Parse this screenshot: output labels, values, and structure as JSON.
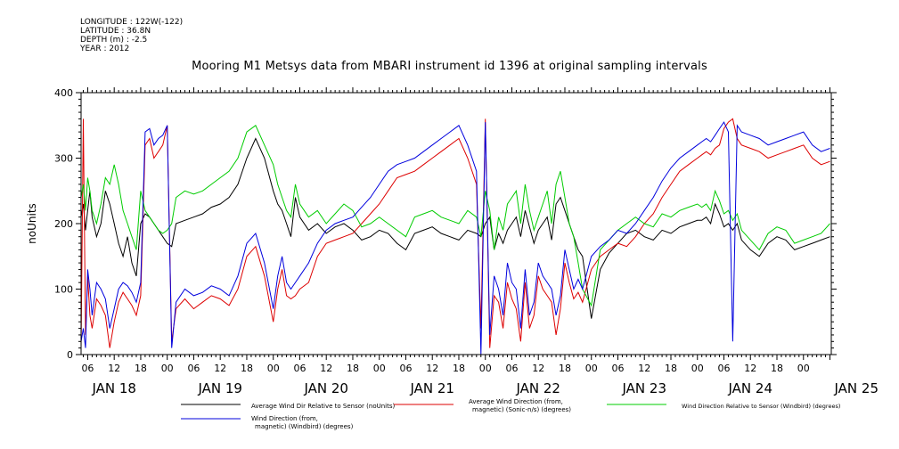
{
  "header": {
    "meta_lines": [
      "LONGITUDE : 122W(-122)",
      "LATITUDE : 36.8N",
      "DEPTH (m) : -2.5",
      "YEAR : 2012"
    ]
  },
  "chart_data": {
    "type": "line",
    "title": "Mooring M1 Metsys data from MBARI instrument id 1396 at original sampling intervals",
    "ylabel": "noUnits",
    "xlabel": "",
    "ylim": [
      0,
      400
    ],
    "xlim": [
      4.5,
      174.3
    ],
    "x_units": "hours since JAN 18 00:00",
    "yticks": [
      0,
      100,
      200,
      300,
      400
    ],
    "hour_ticks": {
      "hours": [
        6,
        12,
        18,
        24,
        30,
        36,
        42,
        48,
        54,
        60,
        66,
        72,
        78,
        84,
        90,
        96,
        102,
        108,
        114,
        120,
        126,
        132,
        138,
        144,
        150,
        156,
        162,
        168
      ],
      "labels": [
        "06",
        "12",
        "18",
        "00",
        "06",
        "12",
        "18",
        "00",
        "06",
        "12",
        "18",
        "00",
        "06",
        "12",
        "18",
        "00",
        "06",
        "12",
        "18",
        "00",
        "06",
        "12",
        "18",
        "00",
        "06",
        "12",
        "18",
        "00"
      ]
    },
    "day_labels": [
      {
        "hour": 0,
        "text": "JAN 18"
      },
      {
        "hour": 24,
        "text": "JAN 19"
      },
      {
        "hour": 48,
        "text": "JAN 20"
      },
      {
        "hour": 72,
        "text": "JAN 21"
      },
      {
        "hour": 96,
        "text": "JAN 22"
      },
      {
        "hour": 120,
        "text": "JAN 23"
      },
      {
        "hour": 144,
        "text": "JAN 24"
      },
      {
        "hour": 168,
        "text": "JAN 25"
      }
    ],
    "grid": false,
    "legend_position": "bottom",
    "series": [
      {
        "name": "Average Wind Dir Relative to Sensor (noUnits)",
        "color": "#000000",
        "x": [
          4.5,
          5,
          5.5,
          6,
          6.5,
          7,
          8,
          9,
          10,
          11,
          12,
          13,
          14,
          15,
          16,
          17,
          18,
          19,
          20,
          21,
          22,
          23,
          24,
          25,
          26,
          28,
          30,
          32,
          34,
          36,
          38,
          40,
          42,
          44,
          46,
          48,
          49,
          50,
          51,
          52,
          53,
          54,
          56,
          58,
          60,
          62,
          64,
          66,
          68,
          70,
          72,
          74,
          76,
          78,
          80,
          82,
          84,
          86,
          88,
          90,
          92,
          94,
          95,
          96,
          97,
          98,
          99,
          100,
          101,
          102,
          103,
          104,
          105,
          106,
          107,
          108,
          109,
          110,
          111,
          112,
          113,
          114,
          115,
          116,
          117,
          118,
          120,
          122,
          124,
          126,
          128,
          130,
          132,
          134,
          136,
          138,
          140,
          142,
          144,
          145,
          146,
          147,
          148,
          149,
          150,
          151,
          152,
          153,
          154,
          156,
          158,
          160,
          162,
          164,
          166,
          168,
          170,
          172,
          174
        ],
        "values": [
          210,
          230,
          190,
          220,
          250,
          210,
          180,
          200,
          250,
          230,
          200,
          170,
          150,
          180,
          140,
          120,
          200,
          215,
          210,
          200,
          190,
          180,
          170,
          165,
          200,
          205,
          210,
          215,
          225,
          230,
          240,
          260,
          300,
          330,
          300,
          250,
          230,
          220,
          200,
          180,
          240,
          210,
          190,
          200,
          185,
          195,
          200,
          190,
          175,
          180,
          190,
          185,
          170,
          160,
          185,
          190,
          195,
          185,
          180,
          175,
          190,
          185,
          180,
          200,
          210,
          160,
          185,
          170,
          190,
          200,
          210,
          180,
          220,
          195,
          170,
          190,
          200,
          210,
          175,
          230,
          240,
          220,
          200,
          180,
          160,
          150,
          55,
          130,
          155,
          170,
          185,
          190,
          180,
          175,
          190,
          185,
          195,
          200,
          205,
          205,
          210,
          200,
          230,
          215,
          195,
          200,
          190,
          200,
          175,
          160,
          150,
          170,
          180,
          175,
          160,
          165,
          170,
          175,
          180
        ]
      },
      {
        "name": "Average Wind Direction (from, magnetic) (Sonic-n/s) (degrees)",
        "color": "#dd0000",
        "x": [
          4.5,
          5,
          5.5,
          6,
          6.5,
          7,
          8,
          9,
          10,
          11,
          12,
          13,
          14,
          15,
          16,
          17,
          18,
          19,
          20,
          21,
          22,
          23,
          24,
          25,
          26,
          28,
          30,
          32,
          34,
          36,
          38,
          40,
          42,
          44,
          46,
          48,
          49,
          50,
          51,
          52,
          53,
          54,
          56,
          58,
          60,
          62,
          64,
          66,
          68,
          70,
          72,
          74,
          76,
          78,
          80,
          82,
          84,
          86,
          88,
          90,
          92,
          94,
          95,
          96,
          97,
          98,
          99,
          100,
          101,
          102,
          103,
          104,
          105,
          106,
          107,
          108,
          109,
          110,
          111,
          112,
          113,
          114,
          115,
          116,
          117,
          118,
          120,
          122,
          124,
          126,
          128,
          130,
          132,
          134,
          136,
          138,
          140,
          142,
          144,
          145,
          146,
          147,
          148,
          149,
          150,
          151,
          152,
          153,
          154,
          156,
          158,
          160,
          162,
          164,
          166,
          168,
          170,
          172,
          174
        ],
        "values": [
          10,
          360,
          30,
          120,
          60,
          40,
          85,
          75,
          60,
          10,
          50,
          80,
          95,
          85,
          75,
          60,
          90,
          320,
          330,
          300,
          310,
          320,
          350,
          20,
          70,
          85,
          70,
          80,
          90,
          85,
          75,
          100,
          150,
          165,
          120,
          50,
          100,
          130,
          90,
          85,
          90,
          100,
          110,
          150,
          170,
          175,
          180,
          185,
          200,
          215,
          230,
          250,
          270,
          275,
          280,
          290,
          300,
          310,
          320,
          330,
          300,
          260,
          40,
          360,
          10,
          90,
          80,
          40,
          110,
          85,
          70,
          20,
          110,
          40,
          60,
          120,
          100,
          90,
          80,
          30,
          70,
          140,
          110,
          85,
          95,
          80,
          130,
          150,
          160,
          170,
          165,
          180,
          200,
          215,
          240,
          260,
          280,
          290,
          300,
          305,
          310,
          305,
          315,
          320,
          345,
          355,
          360,
          330,
          320,
          315,
          310,
          300,
          305,
          310,
          315,
          320,
          300,
          290,
          295
        ]
      },
      {
        "name": "Wind Direction Relative to Sensor (Windbird) (degrees)",
        "color": "#00cc00",
        "x": [
          4.5,
          5,
          5.5,
          6,
          6.5,
          7,
          8,
          9,
          10,
          11,
          12,
          13,
          14,
          15,
          16,
          17,
          18,
          19,
          20,
          21,
          22,
          23,
          24,
          25,
          26,
          28,
          30,
          32,
          34,
          36,
          38,
          40,
          42,
          44,
          46,
          48,
          49,
          50,
          51,
          52,
          53,
          54,
          56,
          58,
          60,
          62,
          64,
          66,
          68,
          70,
          72,
          74,
          76,
          78,
          80,
          82,
          84,
          86,
          88,
          90,
          92,
          94,
          95,
          96,
          97,
          98,
          99,
          100,
          101,
          102,
          103,
          104,
          105,
          106,
          107,
          108,
          109,
          110,
          111,
          112,
          113,
          114,
          115,
          116,
          117,
          118,
          120,
          122,
          124,
          126,
          128,
          130,
          132,
          134,
          136,
          138,
          140,
          142,
          144,
          145,
          146,
          147,
          148,
          149,
          150,
          151,
          152,
          153,
          154,
          156,
          158,
          160,
          162,
          164,
          166,
          168,
          170,
          172,
          174
        ],
        "values": [
          240,
          260,
          220,
          270,
          250,
          220,
          200,
          230,
          270,
          260,
          290,
          260,
          220,
          200,
          180,
          160,
          250,
          220,
          210,
          200,
          190,
          185,
          190,
          200,
          240,
          250,
          245,
          250,
          260,
          270,
          280,
          300,
          340,
          350,
          320,
          290,
          260,
          240,
          220,
          210,
          260,
          230,
          210,
          220,
          200,
          215,
          230,
          220,
          195,
          200,
          210,
          200,
          190,
          180,
          210,
          215,
          220,
          210,
          205,
          200,
          220,
          210,
          180,
          250,
          220,
          160,
          210,
          190,
          230,
          240,
          250,
          200,
          260,
          220,
          190,
          210,
          230,
          250,
          200,
          260,
          280,
          240,
          200,
          180,
          140,
          100,
          75,
          160,
          175,
          190,
          200,
          210,
          200,
          195,
          215,
          210,
          220,
          225,
          230,
          225,
          230,
          220,
          250,
          235,
          215,
          220,
          205,
          215,
          190,
          175,
          160,
          185,
          195,
          190,
          170,
          175,
          180,
          185,
          200
        ]
      },
      {
        "name": "Wind Direction (from, magnetic) (Windbird) (degrees)",
        "color": "#0000dd",
        "x": [
          4.5,
          5,
          5.5,
          6,
          6.5,
          7,
          8,
          9,
          10,
          11,
          12,
          13,
          14,
          15,
          16,
          17,
          18,
          19,
          20,
          21,
          22,
          23,
          24,
          25,
          26,
          28,
          30,
          32,
          34,
          36,
          38,
          40,
          42,
          44,
          46,
          48,
          49,
          50,
          51,
          52,
          53,
          54,
          56,
          58,
          60,
          62,
          64,
          66,
          68,
          70,
          72,
          74,
          76,
          78,
          80,
          82,
          84,
          86,
          88,
          90,
          92,
          94,
          95,
          96,
          97,
          98,
          99,
          100,
          101,
          102,
          103,
          104,
          105,
          106,
          107,
          108,
          109,
          110,
          111,
          112,
          113,
          114,
          115,
          116,
          117,
          118,
          120,
          122,
          124,
          126,
          128,
          130,
          132,
          134,
          136,
          138,
          140,
          142,
          144,
          145,
          146,
          147,
          148,
          149,
          150,
          151,
          152,
          153,
          154,
          156,
          158,
          160,
          162,
          164,
          166,
          168,
          170,
          172,
          174
        ],
        "values": [
          20,
          40,
          10,
          130,
          100,
          60,
          110,
          100,
          85,
          40,
          70,
          100,
          110,
          105,
          95,
          80,
          110,
          340,
          345,
          320,
          330,
          335,
          350,
          10,
          80,
          100,
          90,
          95,
          105,
          100,
          90,
          120,
          170,
          185,
          140,
          70,
          120,
          150,
          110,
          100,
          110,
          120,
          140,
          170,
          190,
          200,
          205,
          210,
          225,
          240,
          260,
          280,
          290,
          295,
          300,
          310,
          320,
          330,
          340,
          350,
          320,
          280,
          0,
          355,
          30,
          120,
          100,
          60,
          140,
          110,
          100,
          40,
          130,
          60,
          80,
          140,
          120,
          110,
          100,
          60,
          90,
          160,
          130,
          100,
          115,
          100,
          150,
          165,
          175,
          190,
          185,
          200,
          220,
          240,
          265,
          285,
          300,
          310,
          320,
          325,
          330,
          325,
          335,
          345,
          355,
          340,
          20,
          350,
          340,
          335,
          330,
          320,
          325,
          330,
          335,
          340,
          320,
          310,
          315
        ]
      }
    ]
  },
  "legend": [
    {
      "label": "Average Wind Dir Relative to Sensor (noUnits)",
      "color": "#000000"
    },
    {
      "label_lines": [
        "Average Wind Direction (from,",
        "magnetic) (Sonic-n/s) (degrees)"
      ],
      "color": "#dd0000"
    },
    {
      "label": "Wind Direction Relative to Sensor (Windbird) (degrees)",
      "color": "#00cc00"
    },
    {
      "label_lines": [
        "Wind Direction (from,",
        "magnetic) (Windbird) (degrees)"
      ],
      "color": "#0000dd"
    }
  ]
}
